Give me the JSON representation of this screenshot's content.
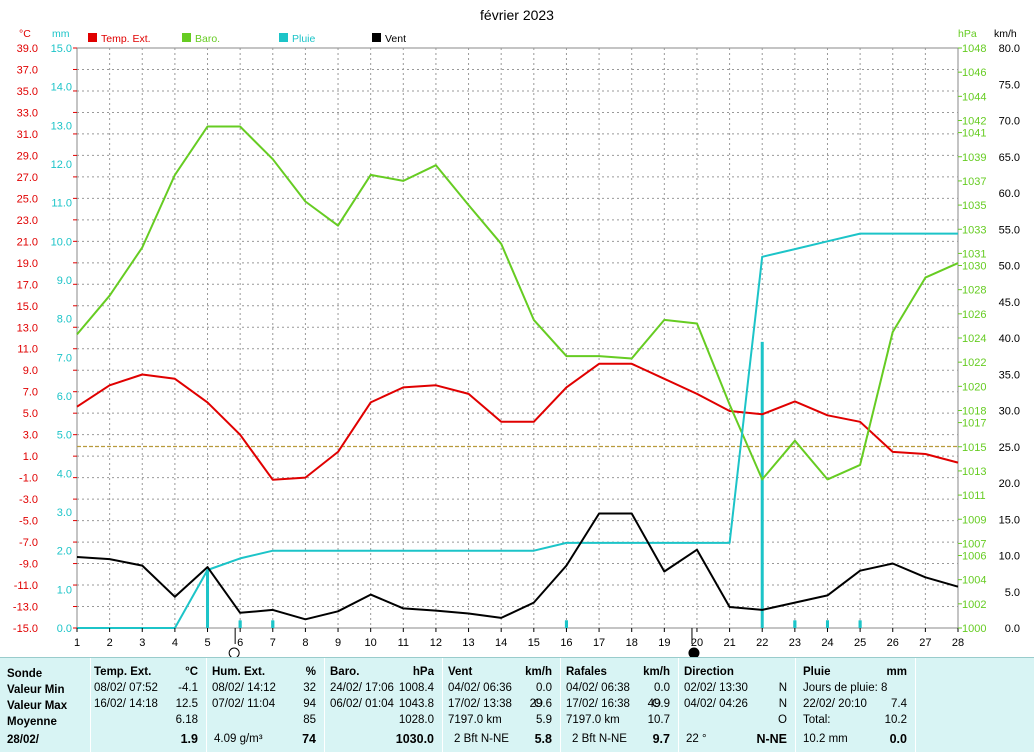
{
  "chart_data": {
    "type": "line",
    "title": "février 2023",
    "x_ticks": [
      1,
      2,
      3,
      4,
      5,
      6,
      7,
      8,
      9,
      10,
      11,
      12,
      13,
      14,
      15,
      16,
      17,
      18,
      19,
      20,
      21,
      22,
      23,
      24,
      25,
      26,
      27,
      28
    ],
    "axes": {
      "temp": {
        "unit": "°C",
        "min": -15,
        "max": 39,
        "ticks": [
          "39.0",
          "37.0",
          "35.0",
          "33.0",
          "31.0",
          "29.0",
          "27.0",
          "25.0",
          "23.0",
          "21.0",
          "19.0",
          "17.0",
          "15.0",
          "13.0",
          "11.0",
          "9.0",
          "7.0",
          "5.0",
          "3.0",
          "1.0",
          "-1.0",
          "-3.0",
          "-5.0",
          "-7.0",
          "-9.0",
          "-11.0",
          "-13.0",
          "-15.0"
        ]
      },
      "rain": {
        "unit": "mm",
        "min": 0,
        "max": 15,
        "ticks": [
          "15.0",
          "14.0",
          "13.0",
          "12.0",
          "11.0",
          "10.0",
          "9.0",
          "8.0",
          "7.0",
          "6.0",
          "5.0",
          "4.0",
          "3.0",
          "2.0",
          "1.0",
          "0.0"
        ]
      },
      "baro": {
        "unit": "hPa",
        "min": 1000,
        "max": 1048,
        "ticks": [
          "1048",
          "1046",
          "1044",
          "1042",
          "1041",
          "1039",
          "1037",
          "1035",
          "1033",
          "1031",
          "1030",
          "1028",
          "1026",
          "1024",
          "1022",
          "1020",
          "1018",
          "1017",
          "1015",
          "1013",
          "1011",
          "1009",
          "1007",
          "1006",
          "1004",
          "1002",
          "1000"
        ]
      },
      "wind": {
        "unit": "km/h",
        "min": 0,
        "max": 80,
        "ticks": [
          "80.0",
          "75.0",
          "70.0",
          "65.0",
          "60.0",
          "55.0",
          "50.0",
          "45.0",
          "40.0",
          "35.0",
          "30.0",
          "25.0",
          "20.0",
          "15.0",
          "10.0",
          "5.0",
          "0.0"
        ]
      }
    },
    "legend": [
      "Temp. Ext.",
      "Baro.",
      "Pluie",
      "Vent"
    ],
    "legend_placement": "top-left",
    "grid": true,
    "colors": {
      "temp": "#e00000",
      "baro": "#66cc22",
      "rain": "#1cc4c8",
      "wind": "#000000",
      "avg": "#b89a3c"
    },
    "series": [
      {
        "name": "Temp. Ext.",
        "axis": "temp",
        "x": [
          1,
          2,
          3,
          4,
          5,
          6,
          7,
          8,
          9,
          10,
          11,
          12,
          13,
          14,
          15,
          16,
          17,
          18,
          19,
          20,
          21,
          22,
          23,
          24,
          25,
          26,
          27,
          28
        ],
        "values": [
          5.6,
          7.6,
          8.6,
          8.2,
          6.0,
          3.0,
          -1.2,
          -1.0,
          1.4,
          6.0,
          7.4,
          7.6,
          6.8,
          4.2,
          4.2,
          7.4,
          9.6,
          9.6,
          8.2,
          6.8,
          5.2,
          4.9,
          6.1,
          4.8,
          4.2,
          1.4,
          1.2,
          0.4
        ]
      },
      {
        "name": "Baro.",
        "axis": "baro",
        "x": [
          1,
          2,
          3,
          4,
          5,
          6,
          7,
          8,
          9,
          10,
          11,
          12,
          13,
          14,
          15,
          16,
          17,
          18,
          19,
          20,
          21,
          22,
          23,
          24,
          25,
          26,
          27,
          28
        ],
        "values": [
          1024.3,
          1027.5,
          1031.5,
          1037.5,
          1041.5,
          1041.5,
          1038.8,
          1035.3,
          1033.3,
          1037.5,
          1037.0,
          1038.3,
          1035.0,
          1031.8,
          1025.5,
          1022.5,
          1022.5,
          1022.3,
          1025.5,
          1025.2,
          1018.5,
          1012.3,
          1015.5,
          1012.3,
          1013.5,
          1024.5,
          1029.0,
          1030.2
        ]
      },
      {
        "name": "Pluie",
        "axis": "rain",
        "x": [
          1,
          4,
          5,
          6,
          7,
          8,
          9,
          10,
          11,
          12,
          13,
          14,
          15,
          16,
          17,
          18,
          19,
          20,
          21,
          22,
          23,
          24,
          25,
          26,
          27,
          28
        ],
        "values": [
          0,
          0,
          1.5,
          1.8,
          2.0,
          2.0,
          2.0,
          2.0,
          2.0,
          2.0,
          2.0,
          2.0,
          2.0,
          2.2,
          2.2,
          2.2,
          2.2,
          2.2,
          2.2,
          9.6,
          9.8,
          10.0,
          10.2,
          10.2,
          10.2,
          10.2
        ]
      },
      {
        "name": "Vent",
        "axis": "wind",
        "x": [
          1,
          2,
          3,
          4,
          5,
          6,
          7,
          8,
          9,
          10,
          11,
          12,
          13,
          14,
          15,
          16,
          17,
          18,
          19,
          20,
          21,
          22,
          23,
          24,
          25,
          26,
          27,
          28
        ],
        "values": [
          9.8,
          9.5,
          8.6,
          4.3,
          8.4,
          2.1,
          2.5,
          1.2,
          2.3,
          4.6,
          2.7,
          2.4,
          2.0,
          1.4,
          3.5,
          8.6,
          15.8,
          15.8,
          7.8,
          10.8,
          2.9,
          2.5,
          3.5,
          4.5,
          7.9,
          8.9,
          7.0,
          5.7
        ]
      },
      {
        "name": "Pluie journalière",
        "axis": "rain",
        "x": [
          5,
          6,
          7,
          16,
          22,
          23,
          24,
          25
        ],
        "values": [
          1.5,
          0.2,
          0.2,
          0.2,
          7.4,
          0.2,
          0.2,
          0.2
        ]
      }
    ],
    "avg_temp_line": 1.9,
    "moon_phases": [
      {
        "day": 6,
        "phase": "full"
      },
      {
        "day": 20,
        "phase": "new"
      }
    ]
  },
  "table": {
    "rowlabels": {
      "header": "Sonde",
      "min": "Valeur Min",
      "max": "Valeur Max",
      "avg": "Moyenne",
      "date": "28/02/"
    },
    "temp": {
      "title": "Temp. Ext.",
      "unit": "°C",
      "min_date": "08/02/  07:52",
      "min_val": "-4.1",
      "max_date": "16/02/  14:18",
      "max_val": "12.5",
      "avg": "6.18",
      "current": "1.9"
    },
    "hum": {
      "title": "Hum. Ext.",
      "unit": "%",
      "min_date": "08/02/  14:12",
      "min_val": "32",
      "max_date": "07/02/  11:04",
      "max_val": "94",
      "avg": "85",
      "abs": "4.09 g/m³",
      "current": "74"
    },
    "baro": {
      "title": "Baro.",
      "unit": "hPa",
      "min_date": "24/02/  17:06",
      "min_val": "1008.4",
      "max_date": "06/02/  01:04",
      "max_val": "1043.8",
      "avg": "1028.0",
      "current": "1030.0"
    },
    "vent": {
      "title": "Vent",
      "unit": "km/h",
      "min_date": "04/02/  06:36",
      "min_val": "0.0",
      "max_date": "17/02/  13:38",
      "max_dir": "O",
      "max_val": "29.6",
      "km": "7197.0 km",
      "avg": "5.9",
      "beaufort": "2 Bft N-NE",
      "current": "5.8"
    },
    "rafales": {
      "title": "Rafales",
      "unit": "km/h",
      "min_date": "04/02/  06:38",
      "min_val": "0.0",
      "max_date": "17/02/  16:38",
      "max_dir": "O",
      "max_val": "49.9",
      "km": "7197.0 km",
      "avg": "10.7",
      "beaufort": "2 Bft N-NE",
      "current": "9.7"
    },
    "direction": {
      "title": "Direction",
      "min_date": "02/02/  13:30",
      "min_val": "N",
      "max_date": "04/02/  04:26",
      "max_val": "N",
      "avg": "O",
      "deg": "22 °",
      "current": "N-NE"
    },
    "pluie": {
      "title": "Pluie",
      "unit": "mm",
      "days": "Jours de pluie: 8",
      "max_date": "22/02/  20:10",
      "max_val": "7.4",
      "total_label": "Total:",
      "total": "10.2",
      "month": "10.2 mm",
      "current": "0.0"
    }
  }
}
